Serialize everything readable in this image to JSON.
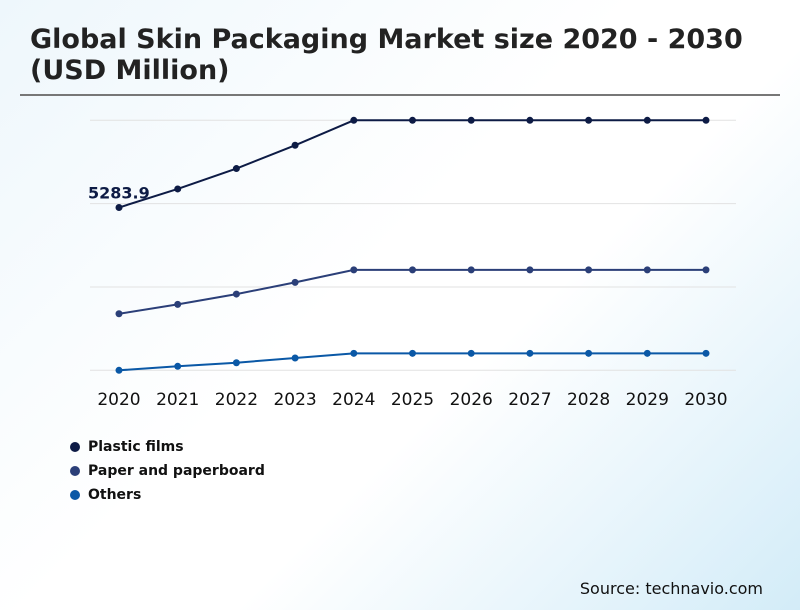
{
  "chart_data": {
    "type": "line",
    "title": "Global Skin Packaging Market size 2020 - 2030 (USD Million)",
    "xlabel": "",
    "ylabel": "",
    "x": [
      "2020",
      "2021",
      "2022",
      "2023",
      "2024",
      "2025",
      "2026",
      "2027",
      "2028",
      "2029",
      "2030"
    ],
    "ylim": [
      0,
      8115
    ],
    "grid": true,
    "legend_position": "bottom-left",
    "series": [
      {
        "name": "Plastic films",
        "color": "#0d1b45",
        "values": [
          5283.9,
          5887,
          6549,
          7304,
          8115,
          8115,
          8115,
          8115,
          8115,
          8115,
          8115
        ]
      },
      {
        "name": "Paper and paperboard",
        "color": "#2b3f78",
        "values": [
          1835,
          2140,
          2474,
          2853,
          3261,
          3261,
          3261,
          3261,
          3261,
          3261,
          3261
        ]
      },
      {
        "name": "Others",
        "color": "#0a58a6",
        "values": [
          0,
          130,
          246,
          399,
          551,
          551,
          551,
          551,
          551,
          551,
          551
        ]
      }
    ],
    "annotations": [
      {
        "series": "Plastic films",
        "x": "2020",
        "text": "5283.9"
      }
    ]
  },
  "source": "Source: technavio.com"
}
